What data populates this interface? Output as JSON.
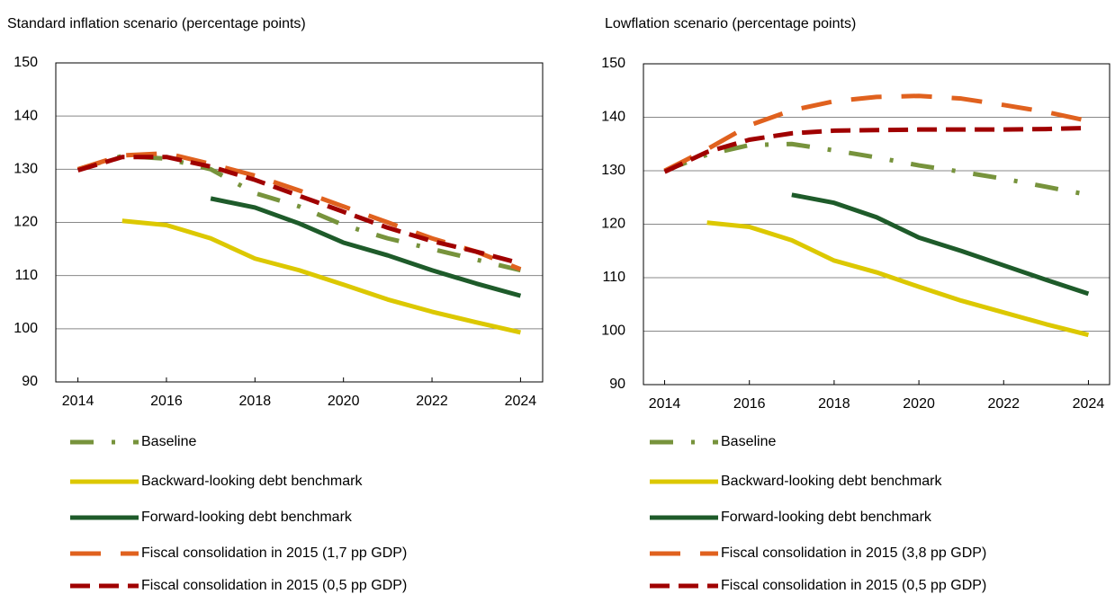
{
  "chart_data": [
    {
      "type": "line",
      "title": "Standard inflation scenario (percentage points)",
      "x": [
        2014,
        2015,
        2016,
        2017,
        2018,
        2019,
        2020,
        2021,
        2022,
        2023,
        2024
      ],
      "xlim": [
        2013.5,
        2024.5
      ],
      "xticks": [
        2014,
        2016,
        2018,
        2020,
        2022,
        2024
      ],
      "ylim": [
        90,
        150
      ],
      "yticks": [
        90,
        100,
        110,
        120,
        130,
        140,
        150
      ],
      "grid": true,
      "series": [
        {
          "name": "Baseline",
          "color": "#77933c",
          "dash": "dash-dot",
          "values": [
            130,
            132.5,
            132,
            130,
            125.5,
            123,
            119.5,
            117,
            115,
            113,
            111
          ]
        },
        {
          "name": "Backward-looking debt benchmark",
          "color": "#dcc800",
          "dash": "solid",
          "values": [
            null,
            120.3,
            119.5,
            117,
            113.2,
            111,
            108.3,
            105.5,
            103.2,
            101.2,
            99.3
          ]
        },
        {
          "name": "Forward-looking debt benchmark",
          "color": "#1e5b2a",
          "dash": "solid",
          "values": [
            null,
            null,
            null,
            124.5,
            122.8,
            119.8,
            116.2,
            113.8,
            111,
            108.5,
            106.2
          ]
        },
        {
          "name": "Fiscal consolidation in 2015 (1,7 pp GDP)",
          "color": "#e0611e",
          "dash": "long-dash",
          "values": [
            130,
            132.6,
            133,
            131,
            128.8,
            126,
            123,
            120,
            117,
            114.5,
            111.2
          ]
        },
        {
          "name": "Fiscal consolidation in 2015 (0,5 pp GDP)",
          "color": "#a00000",
          "dash": "dashed",
          "values": [
            129.8,
            132.3,
            132.3,
            130.5,
            128,
            125,
            122,
            119,
            116.5,
            114.5,
            112.3
          ]
        }
      ]
    },
    {
      "type": "line",
      "title": "Lowflation scenario (percentage points)",
      "x": [
        2014,
        2015,
        2016,
        2017,
        2018,
        2019,
        2020,
        2021,
        2022,
        2023,
        2024
      ],
      "xlim": [
        2013.5,
        2024.5
      ],
      "xticks": [
        2014,
        2016,
        2018,
        2020,
        2022,
        2024
      ],
      "ylim": [
        90,
        150
      ],
      "yticks": [
        90,
        100,
        110,
        120,
        130,
        140,
        150
      ],
      "grid": true,
      "series": [
        {
          "name": "Baseline",
          "color": "#77933c",
          "dash": "dash-dot",
          "values": [
            130,
            133,
            134.8,
            135,
            133.8,
            132.5,
            131,
            129.8,
            128.5,
            127,
            125.5
          ]
        },
        {
          "name": "Backward-looking debt benchmark",
          "color": "#dcc800",
          "dash": "solid",
          "values": [
            null,
            120.3,
            119.5,
            117,
            113.2,
            111,
            108.3,
            105.7,
            103.5,
            101.3,
            99.3
          ]
        },
        {
          "name": "Forward-looking debt benchmark",
          "color": "#1e5b2a",
          "dash": "solid",
          "values": [
            null,
            null,
            null,
            125.5,
            124,
            121.3,
            117.5,
            115,
            112.3,
            109.6,
            107
          ]
        },
        {
          "name": "Fiscal consolidation in 2015 (3,8 pp GDP)",
          "color": "#e0611e",
          "dash": "long-dash",
          "values": [
            130,
            134,
            138.5,
            141.3,
            143,
            143.8,
            144,
            143.5,
            142.3,
            141,
            139.3
          ]
        },
        {
          "name": "Fiscal consolidation in 2015 (0,5 pp GDP)",
          "color": "#a00000",
          "dash": "dashed",
          "values": [
            129.8,
            133.5,
            135.8,
            137,
            137.5,
            137.6,
            137.7,
            137.7,
            137.7,
            137.8,
            138
          ]
        }
      ]
    }
  ]
}
